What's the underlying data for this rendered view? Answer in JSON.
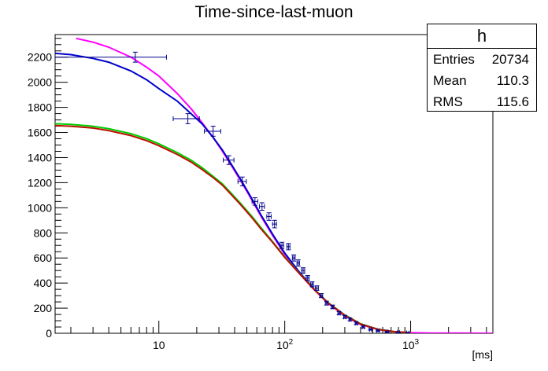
{
  "title": "Time-since-last-muon",
  "stats": {
    "name": "h",
    "rows": [
      {
        "label": "Entries",
        "value": "20734"
      },
      {
        "label": "Mean",
        "value": "110.3"
      },
      {
        "label": "RMS",
        "value": "115.6"
      }
    ]
  },
  "chart_data": {
    "type": "scatter",
    "title": "Time-since-last-muon",
    "xlabel": "[ms]",
    "ylabel": "",
    "xscale": "log",
    "xlim": [
      1.5,
      4500
    ],
    "ylim": [
      0,
      2380
    ],
    "y_ticks": [
      0,
      200,
      400,
      600,
      800,
      1000,
      1200,
      1400,
      1600,
      1800,
      2000,
      2200
    ],
    "x_ticks": [
      {
        "value": 10,
        "label": "10",
        "sup": ""
      },
      {
        "value": 100,
        "label": "10",
        "sup": "2"
      },
      {
        "value": 1000,
        "label": "10",
        "sup": "3"
      }
    ],
    "grid": false,
    "points": {
      "name": "",
      "color": "#00008b",
      "x": [
        6.5,
        17,
        27,
        36,
        46,
        58,
        66,
        75,
        83,
        95,
        107,
        118,
        128,
        140,
        152,
        165,
        180,
        195,
        215,
        240,
        270,
        300,
        330,
        370,
        420,
        480,
        550,
        650,
        800,
        950
      ],
      "xerr": [
        5,
        4,
        4,
        3.5,
        3.5,
        3,
        3,
        3,
        3,
        3,
        3,
        3,
        3,
        4,
        4,
        4,
        5,
        5,
        5,
        5,
        6,
        6,
        6,
        7,
        8,
        9,
        10,
        12,
        15,
        20
      ],
      "y": [
        2200,
        1710,
        1610,
        1380,
        1210,
        1050,
        1010,
        930,
        870,
        700,
        690,
        600,
        560,
        500,
        440,
        390,
        360,
        300,
        240,
        210,
        160,
        130,
        110,
        80,
        50,
        30,
        20,
        10,
        5,
        2
      ],
      "yerr": [
        40,
        40,
        40,
        35,
        35,
        30,
        30,
        30,
        30,
        25,
        25,
        25,
        25,
        22,
        20,
        20,
        18,
        16,
        15,
        14,
        12,
        11,
        10,
        9,
        7,
        5,
        4,
        3,
        2,
        2
      ]
    },
    "series": [
      {
        "name": "",
        "color": "#ff00ff",
        "x": [
          2.2,
          3,
          4,
          6,
          8,
          10,
          14,
          18,
          22,
          27,
          32,
          38,
          45,
          55,
          65,
          80,
          100,
          130,
          170,
          220,
          300,
          400,
          550,
          750,
          1000,
          1500,
          2500,
          4500
        ],
        "y": [
          2350,
          2320,
          2280,
          2200,
          2120,
          2050,
          1910,
          1790,
          1680,
          1560,
          1450,
          1330,
          1210,
          1060,
          930,
          780,
          630,
          480,
          350,
          240,
          140,
          70,
          30,
          12,
          5,
          2,
          1,
          0
        ]
      },
      {
        "name": "",
        "color": "#0000cc",
        "x": [
          1.5,
          2,
          3,
          4,
          6,
          8,
          10,
          14,
          18,
          22,
          27,
          32,
          38,
          45,
          55,
          65,
          80,
          100,
          130,
          170,
          220,
          300,
          400,
          550,
          750,
          1000
        ],
        "y": [
          2230,
          2220,
          2190,
          2160,
          2090,
          2020,
          1950,
          1850,
          1750,
          1670,
          1560,
          1460,
          1340,
          1220,
          1070,
          940,
          790,
          640,
          490,
          355,
          245,
          145,
          75,
          32,
          12,
          5
        ]
      },
      {
        "name": "",
        "color": "#00cc00",
        "x": [
          1.5,
          2,
          3,
          4,
          6,
          8,
          10,
          14,
          18,
          22,
          27,
          32,
          38,
          45,
          55,
          65,
          80,
          100,
          130,
          170,
          220,
          300,
          400,
          550,
          750,
          1000
        ],
        "y": [
          1670,
          1665,
          1650,
          1630,
          1590,
          1550,
          1510,
          1440,
          1380,
          1320,
          1250,
          1190,
          1110,
          1030,
          930,
          840,
          730,
          610,
          480,
          355,
          245,
          145,
          75,
          32,
          12,
          5
        ]
      },
      {
        "name": "",
        "color": "#bb1100",
        "x": [
          1.5,
          2,
          3,
          4,
          6,
          8,
          10,
          14,
          18,
          22,
          27,
          32,
          38,
          45,
          55,
          65,
          80,
          100,
          130,
          170,
          220,
          300,
          400,
          550,
          750,
          1000
        ],
        "y": [
          1655,
          1650,
          1635,
          1615,
          1575,
          1535,
          1495,
          1425,
          1365,
          1305,
          1240,
          1180,
          1100,
          1020,
          920,
          830,
          725,
          605,
          478,
          352,
          243,
          143,
          73,
          31,
          12,
          5
        ]
      }
    ]
  }
}
